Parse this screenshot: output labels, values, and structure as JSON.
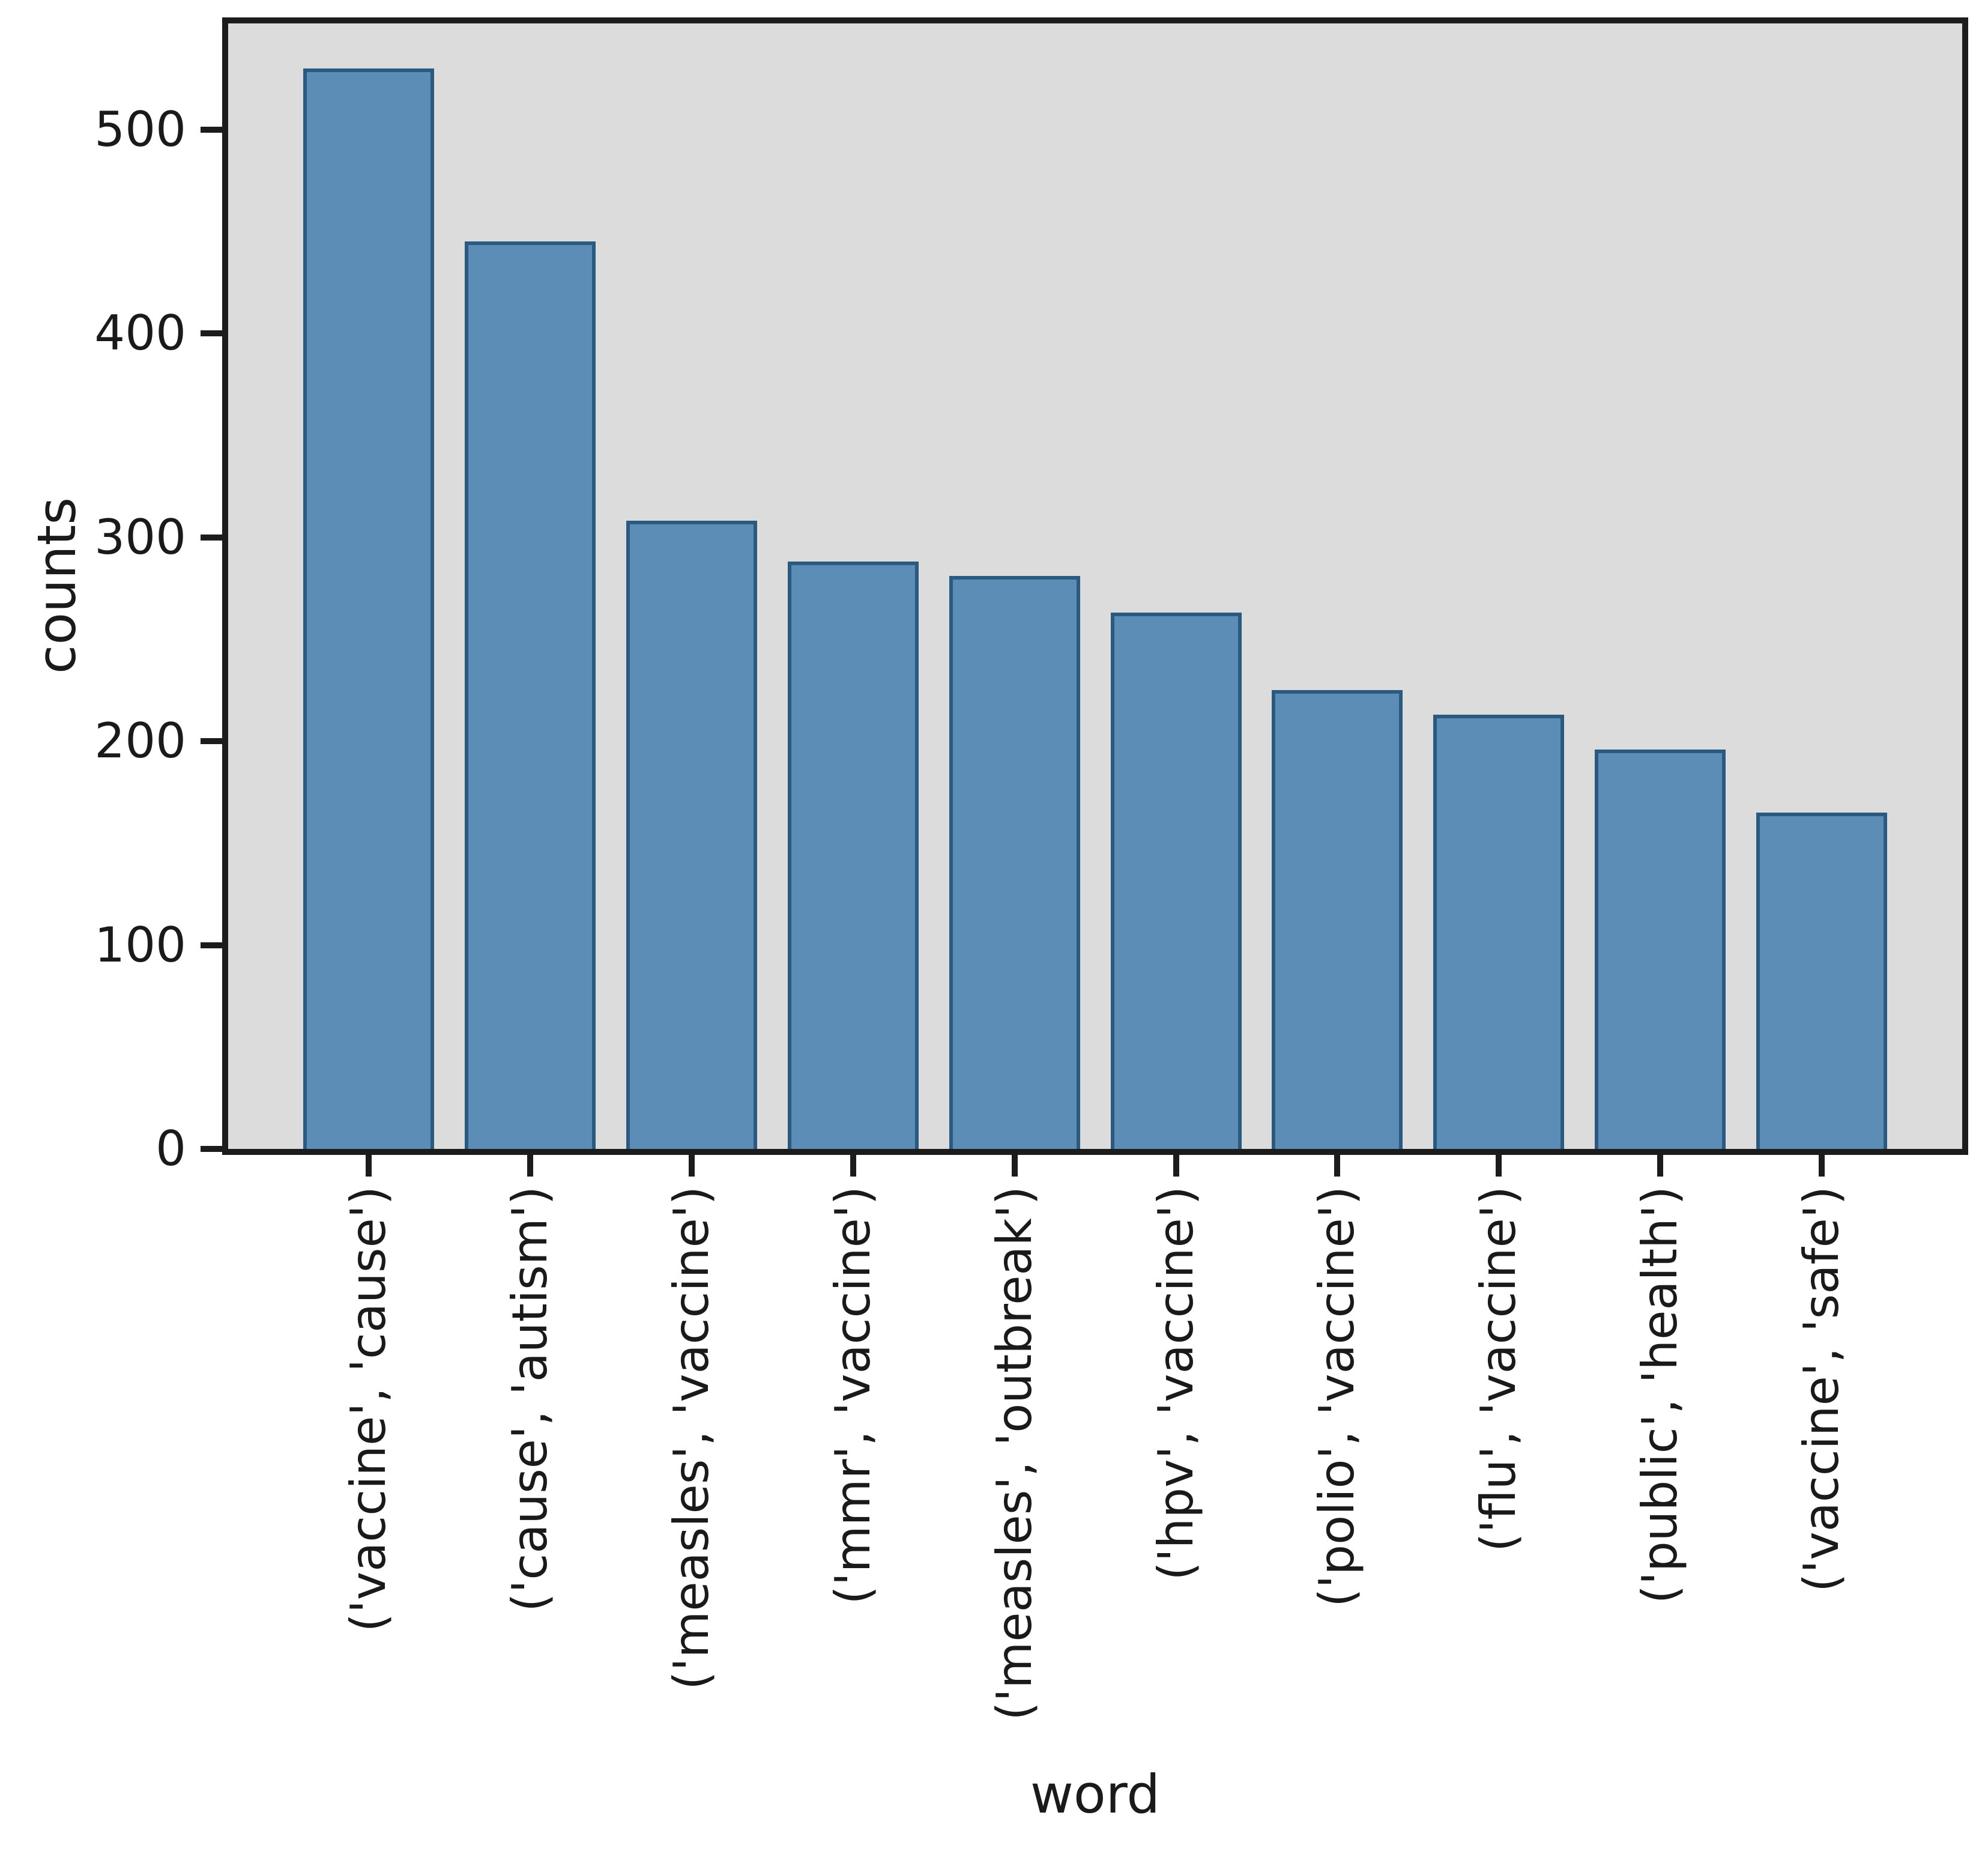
{
  "chart_data": {
    "type": "bar",
    "title": "",
    "xlabel": "word",
    "ylabel": "counts",
    "categories": [
      "('vaccine', 'cause')",
      "('cause', 'autism')",
      "('measles', 'vaccine')",
      "('mmr', 'vaccine')",
      "('measles', 'outbreak')",
      "('hpv', 'vaccine')",
      "('polio', 'vaccine')",
      "('flu', 'vaccine')",
      "('public', 'health')",
      "('vaccine', 'safe')"
    ],
    "values": [
      530,
      445,
      308,
      288,
      281,
      263,
      225,
      213,
      196,
      165
    ],
    "yticks": [
      0,
      100,
      200,
      300,
      400,
      500
    ],
    "ylim": [
      0,
      552
    ],
    "grid": false,
    "legend": false,
    "colors": {
      "bar_fill": "#5b8db6",
      "bar_edge": "#2b5a81",
      "plot_bg": "#dcdcdc",
      "figure_bg": "#ffffff",
      "spine": "#1c1c1c",
      "text": "#1a1a1a"
    }
  }
}
